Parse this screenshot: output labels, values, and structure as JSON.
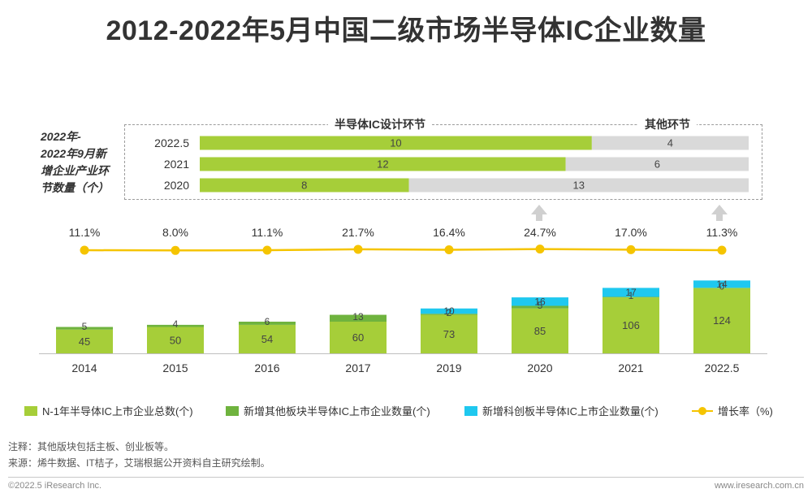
{
  "title": "2012-2022年5月中国二级市场半导体IC企业数量",
  "colors": {
    "base": "#a6ce39",
    "other": "#6fb33e",
    "star": "#1fc8ef",
    "rate": "#f5c400",
    "inset_design": "#a6ce39",
    "inset_other": "#d9d9d9"
  },
  "inset": {
    "title_lines": [
      "2022年-",
      "2022年9月新",
      "增企业产业环",
      "节数量（个）"
    ],
    "header_design": "半导体IC设计环节",
    "header_other": "其他环节"
  },
  "chart_data": [
    {
      "type": "bar",
      "stacked": true,
      "orientation": "vertical",
      "categories": [
        "2014",
        "2015",
        "2016",
        "2017",
        "2019",
        "2020",
        "2021",
        "2022.5"
      ],
      "series": [
        {
          "name": "N-1年半导体IC上市企业总数(个)",
          "values": [
            45,
            50,
            54,
            60,
            73,
            85,
            106,
            124
          ]
        },
        {
          "name": "新增其他板块半导体IC上市企业数量(个)",
          "values": [
            5,
            4,
            6,
            13,
            2,
            5,
            1,
            0
          ]
        },
        {
          "name": "新增科创板半导体IC上市企业数量(个)",
          "values": [
            null,
            null,
            null,
            null,
            10,
            16,
            17,
            14
          ]
        }
      ],
      "line": {
        "name": "增长率（%)",
        "values": [
          11.1,
          8.0,
          11.1,
          21.7,
          16.4,
          24.7,
          17.0,
          11.3
        ],
        "labels": [
          "11.1%",
          "8.0%",
          "11.1%",
          "21.7%",
          "16.4%",
          "24.7%",
          "17.0%",
          "11.3%"
        ]
      }
    },
    {
      "type": "bar",
      "stacked": true,
      "orientation": "horizontal",
      "categories": [
        "2022.5",
        "2021",
        "2020"
      ],
      "series": [
        {
          "name": "半导体IC设计环节",
          "values": [
            10,
            12,
            8
          ]
        },
        {
          "name": "其他环节",
          "values": [
            4,
            6,
            13
          ]
        }
      ]
    }
  ],
  "notes": {
    "note": "注释：其他版块包括主板、创业板等。",
    "source": "来源：烯牛数据、IT桔子，艾瑞根据公开资料自主研究绘制。"
  },
  "footer": {
    "copyright": "©2022.5 iResearch Inc.",
    "url": "www.iresearch.com.cn"
  }
}
